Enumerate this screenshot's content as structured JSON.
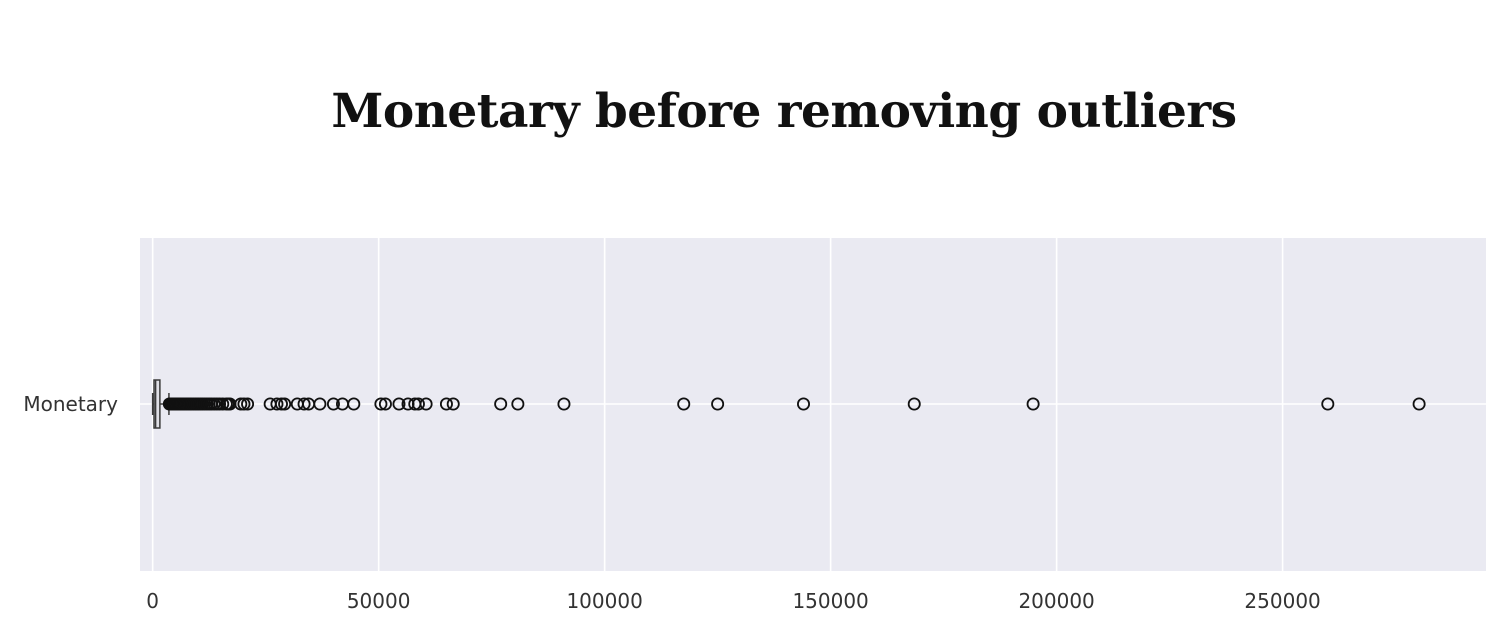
{
  "chart_data": {
    "type": "boxplot",
    "orientation": "horizontal",
    "title": "Monetary before removing outliers",
    "xlabel": "",
    "ylabel": "",
    "categories": [
      "Monetary"
    ],
    "xlim": [
      -2800,
      295000
    ],
    "xticks": [
      0,
      50000,
      100000,
      150000,
      200000,
      250000
    ],
    "xtick_labels": [
      "0",
      "50000",
      "100000",
      "150000",
      "200000",
      "250000"
    ],
    "grid": true,
    "style": {
      "background": "#eaeaf2",
      "grid_color": "#ffffff",
      "box_fill": "#e0e0e6",
      "outlier_edge": "#111111"
    },
    "box": {
      "whislo": 0,
      "q1": 300,
      "median": 650,
      "q3": 1600,
      "whishi": 3600
    },
    "outliers": [
      3700,
      3900,
      4100,
      4300,
      4500,
      4700,
      4900,
      5100,
      5300,
      5500,
      5700,
      5900,
      6100,
      6300,
      6500,
      6800,
      7100,
      7400,
      7700,
      8000,
      8300,
      8600,
      9000,
      9400,
      9800,
      10200,
      10600,
      11000,
      11500,
      12000,
      12500,
      13000,
      13600,
      14200,
      14800,
      15500,
      16300,
      16700,
      17100,
      19500,
      20200,
      21000,
      26000,
      27500,
      28500,
      29200,
      32000,
      33500,
      34500,
      37000,
      40000,
      42000,
      44500,
      50500,
      51500,
      54500,
      56500,
      58000,
      58800,
      60500,
      65000,
      66500,
      77000,
      80800,
      91000,
      117500,
      125000,
      144000,
      168500,
      194800,
      260000,
      280200
    ]
  }
}
